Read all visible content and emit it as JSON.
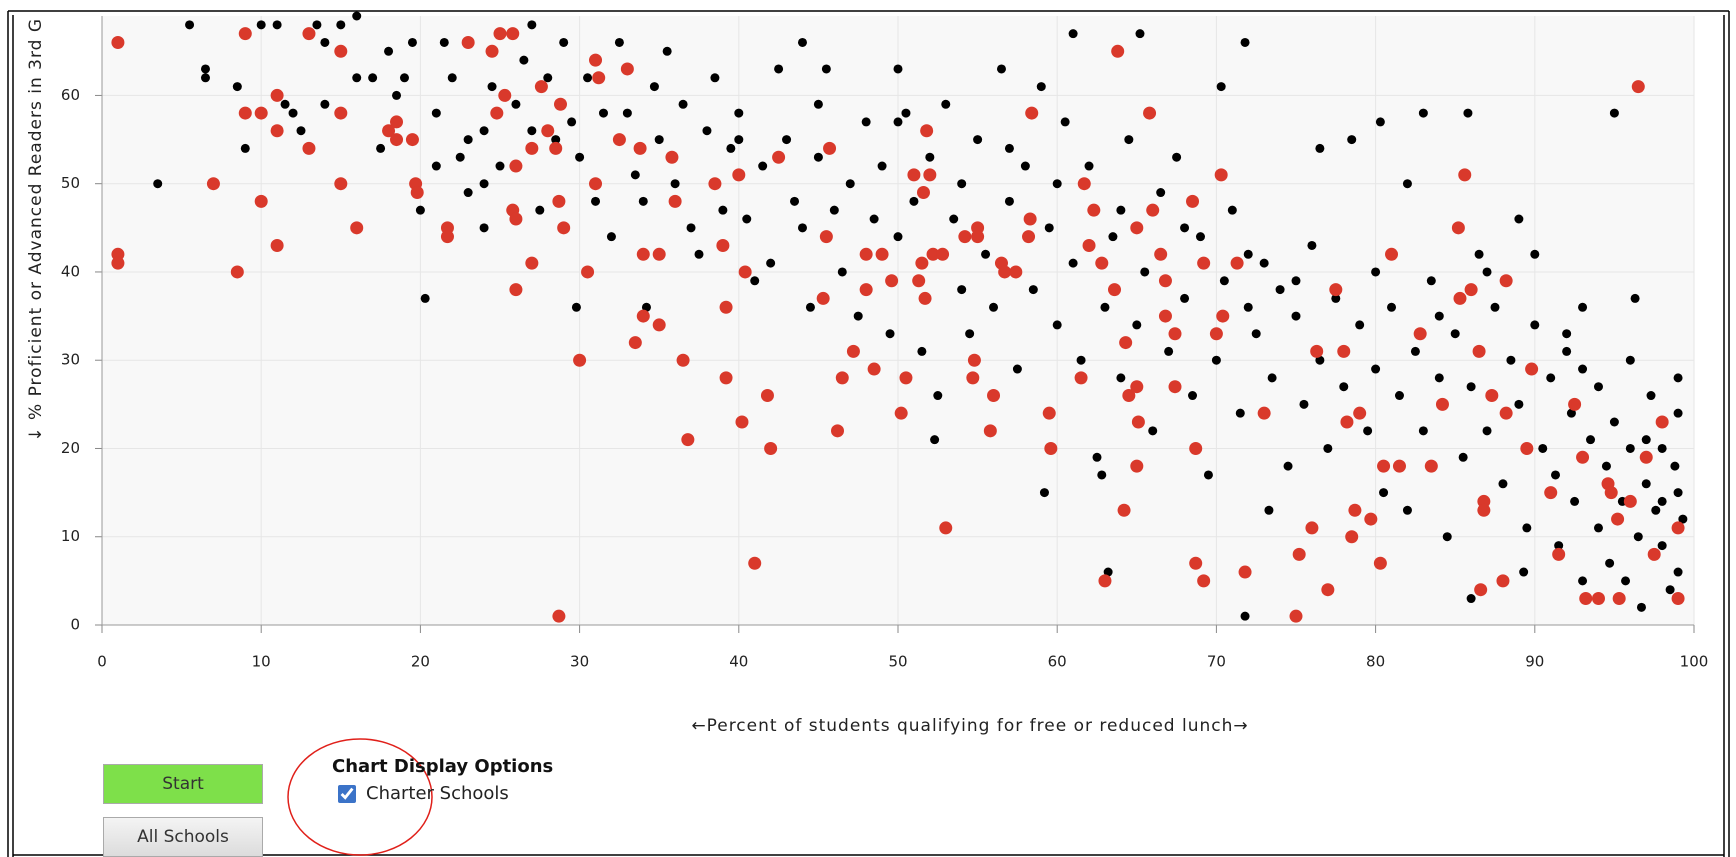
{
  "chart_data": {
    "type": "scatter",
    "ylabel": "↓ % Proficient or Advanced Readers in 3rd G",
    "xlabel": "←Percent of students qualifying for free or reduced lunch→",
    "xlim": [
      0,
      100
    ],
    "ylim": [
      0,
      69
    ],
    "xticks": [
      0,
      10,
      20,
      30,
      40,
      50,
      60,
      70,
      80,
      90,
      100
    ],
    "yticks": [
      0,
      10,
      20,
      30,
      40,
      50,
      60
    ],
    "grid": true,
    "series": [
      {
        "color": "#000000",
        "x": [
          5.5,
          6.5,
          6.5,
          3.5,
          8.5,
          9,
          10,
          11,
          11.5,
          12,
          12.5,
          13.5,
          14,
          14,
          15,
          16,
          16,
          17,
          17.5,
          18,
          18.5,
          19,
          19.5,
          20,
          20.3,
          21,
          21,
          21.5,
          22,
          22.5,
          23,
          23,
          24,
          24,
          24,
          24.5,
          25,
          26,
          26.5,
          27,
          27,
          27.5,
          28,
          28.5,
          29,
          29.5,
          29.8,
          30,
          30.5,
          31,
          31.5,
          32,
          32.5,
          33,
          33.5,
          34,
          34.2,
          34.7,
          35,
          35.5,
          36,
          36.5,
          37,
          37.5,
          38,
          38.5,
          39,
          39.5,
          40,
          40.5,
          41,
          41.5,
          42,
          42.5,
          43,
          43.5,
          44,
          44,
          44.5,
          45,
          45.5,
          46,
          46.5,
          47,
          47.5,
          48,
          48.5,
          49,
          49.5,
          50,
          50,
          50.5,
          51,
          51.5,
          52,
          52.5,
          52.3,
          53,
          53.5,
          54,
          54,
          54.5,
          55,
          55.5,
          56,
          56.5,
          57,
          57.5,
          58,
          58.5,
          59,
          59.2,
          59.5,
          60,
          60.5,
          61,
          61,
          61.5,
          62,
          62.5,
          62.8,
          63,
          63.2,
          63.5,
          64,
          64.5,
          65,
          65.2,
          65.5,
          66,
          66.5,
          67,
          67.5,
          68,
          68.5,
          69,
          69.5,
          70,
          70.3,
          70.5,
          71,
          71.5,
          71.8,
          71.8,
          72,
          72.5,
          73,
          73.3,
          73.5,
          74,
          74.5,
          75,
          75.5,
          76,
          76.5,
          76.5,
          77,
          77.5,
          78,
          78.5,
          79,
          79.5,
          80,
          80.3,
          80.5,
          81,
          81.5,
          82,
          82,
          82.5,
          83,
          83,
          83.5,
          84,
          84.5,
          85,
          85.5,
          85.8,
          86,
          86,
          86.5,
          87,
          87.5,
          88,
          88.5,
          89,
          89,
          89.3,
          89.5,
          90,
          90.5,
          91,
          91.3,
          91.5,
          92,
          92.3,
          92.5,
          93,
          93,
          93.5,
          94,
          94,
          94.5,
          94.7,
          95,
          95,
          95.5,
          95.7,
          96,
          96.3,
          96.5,
          96.7,
          97,
          97.3,
          97.6,
          98,
          98,
          98.5,
          98.8,
          99,
          99,
          99,
          99,
          99.3,
          90,
          92,
          96,
          93,
          97,
          98,
          87,
          84,
          80,
          75,
          72,
          68,
          64,
          60,
          57,
          50,
          45,
          40
        ],
        "values": [
          68,
          63,
          62,
          50,
          61,
          54,
          68,
          68,
          59,
          58,
          56,
          68,
          59,
          66,
          68,
          62,
          69,
          62,
          54,
          65,
          60,
          62,
          66,
          47,
          37,
          52,
          58,
          66,
          62,
          53,
          55,
          49,
          50,
          45,
          56,
          61,
          52,
          59,
          64,
          68,
          56,
          47,
          62,
          55,
          66,
          57,
          36,
          53,
          62,
          48,
          58,
          44,
          66,
          58,
          51,
          48,
          36,
          61,
          55,
          65,
          50,
          59,
          45,
          42,
          56,
          62,
          47,
          54,
          58,
          46,
          39,
          52,
          41,
          63,
          55,
          48,
          45,
          66,
          36,
          59,
          63,
          47,
          40,
          50,
          35,
          57,
          46,
          52,
          33,
          63,
          44,
          58,
          48,
          31,
          53,
          26,
          21,
          59,
          46,
          38,
          50,
          33,
          55,
          42,
          36,
          63,
          48,
          29,
          52,
          38,
          61,
          15,
          45,
          34,
          57,
          67,
          41,
          30,
          52,
          19,
          17,
          36,
          6,
          44,
          28,
          55,
          34,
          67,
          40,
          22,
          49,
          31,
          53,
          37,
          26,
          44,
          17,
          30,
          61,
          39,
          47,
          24,
          66,
          1,
          36,
          33,
          41,
          13,
          28,
          38,
          18,
          35,
          25,
          43,
          54,
          30,
          20,
          37,
          27,
          55,
          34,
          22,
          29,
          57,
          15,
          36,
          26,
          50,
          13,
          31,
          22,
          58,
          39,
          28,
          10,
          33,
          19,
          58,
          3,
          27,
          42,
          22,
          36,
          16,
          30,
          46,
          25,
          6,
          11,
          34,
          20,
          28,
          17,
          9,
          31,
          24,
          14,
          36,
          5,
          21,
          27,
          11,
          18,
          7,
          58,
          23,
          14,
          5,
          20,
          37,
          10,
          2,
          16,
          26,
          13,
          20,
          9,
          4,
          18,
          28,
          15,
          24,
          6,
          12,
          42,
          33,
          30,
          29,
          21,
          14,
          40,
          35,
          40,
          39,
          42,
          45,
          47,
          50,
          54,
          57,
          53,
          55
        ]
      },
      {
        "name": "Charter Schools",
        "color": "#d9392b",
        "x": [
          1,
          1,
          1,
          7,
          9,
          9,
          10,
          10,
          8.5,
          11,
          11,
          11,
          13,
          13,
          15,
          15,
          15,
          16,
          18,
          18.5,
          18.5,
          19.5,
          19.7,
          19.8,
          21.7,
          21.7,
          23,
          24.5,
          24.8,
          25,
          25.3,
          25.8,
          25.8,
          26,
          26,
          26,
          27,
          27,
          27.6,
          28,
          28.5,
          28.7,
          28.8,
          29,
          28.7,
          30,
          30.5,
          31,
          31,
          31.2,
          32.5,
          33,
          33.8,
          34,
          33.5,
          34,
          35,
          35,
          35.8,
          36,
          36.5,
          36.8,
          38.5,
          39,
          39.2,
          39.2,
          40,
          40.2,
          40.4,
          41,
          41.8,
          42,
          42.5,
          45.3,
          45.5,
          45.7,
          46.2,
          46.5,
          47.2,
          48,
          48,
          48.5,
          49,
          49.6,
          50.2,
          50.5,
          51,
          51.3,
          51.5,
          51.6,
          51.7,
          52,
          52.2,
          51.8,
          53,
          52.8,
          54.2,
          54.8,
          54.7,
          55,
          55,
          56,
          55.8,
          56.5,
          56.7,
          57.4,
          58.4,
          58.3,
          58.2,
          59.5,
          59.6,
          61.5,
          61.7,
          62,
          62.3,
          62.8,
          63,
          63.6,
          63.8,
          64.3,
          64.2,
          64.5,
          65,
          65,
          65.1,
          65,
          65.8,
          66,
          66.5,
          66.8,
          66.8,
          67.4,
          67.4,
          68.5,
          68.7,
          68.7,
          69.2,
          69.2,
          70,
          70.4,
          70.3,
          71.3,
          71.8,
          73,
          75,
          75.2,
          76,
          76.3,
          77,
          77.5,
          78,
          78.2,
          78.5,
          78.7,
          79,
          79.7,
          80.3,
          80.5,
          81,
          81.5,
          82.8,
          83.5,
          84.2,
          85.2,
          85.3,
          85.6,
          86,
          86.5,
          86.8,
          86.8,
          86.6,
          87.3,
          88,
          88.2,
          88.2,
          89.5,
          89.8,
          91,
          91.5,
          92.5,
          93,
          93.2,
          94,
          94.6,
          94.8,
          95.2,
          95.3,
          96,
          96.5,
          97,
          97.5,
          98,
          99,
          99
        ],
        "values": [
          66,
          42,
          41,
          50,
          67,
          58,
          58,
          48,
          40,
          60,
          56,
          43,
          67,
          54,
          65,
          58,
          50,
          45,
          56,
          57,
          55,
          55,
          50,
          49,
          45,
          44,
          66,
          65,
          58,
          67,
          60,
          67,
          47,
          46,
          52,
          38,
          54,
          41,
          61,
          56,
          54,
          48,
          59,
          45,
          1,
          30,
          40,
          50,
          64,
          62,
          55,
          63,
          54,
          42,
          32,
          35,
          42,
          34,
          53,
          48,
          30,
          21,
          50,
          43,
          36,
          28,
          51,
          23,
          40,
          7,
          26,
          20,
          53,
          37,
          44,
          54,
          22,
          28,
          31,
          42,
          38,
          29,
          42,
          39,
          24,
          28,
          51,
          39,
          41,
          49,
          37,
          51,
          42,
          56,
          11,
          42,
          44,
          30,
          28,
          45,
          44,
          26,
          22,
          41,
          40,
          40,
          58,
          46,
          44,
          24,
          20,
          28,
          50,
          43,
          47,
          41,
          5,
          38,
          65,
          32,
          13,
          26,
          45,
          27,
          23,
          18,
          58,
          47,
          42,
          35,
          39,
          33,
          27,
          48,
          20,
          7,
          41,
          5,
          33,
          35,
          51,
          41,
          6,
          24,
          1,
          8,
          11,
          31,
          4,
          38,
          31,
          23,
          10,
          13,
          24,
          12,
          7,
          18,
          42,
          18,
          33,
          18,
          25,
          45,
          37,
          51,
          38,
          31,
          14,
          13,
          4,
          26,
          5,
          39,
          24,
          20,
          29,
          15,
          8,
          25,
          19,
          3,
          3,
          16,
          15,
          12,
          3,
          14,
          61,
          19,
          8,
          23,
          11,
          3
        ]
      }
    ]
  },
  "controls": {
    "start": "Start",
    "all_schools": "All Schools",
    "options_title": "Chart Display Options"
  }
}
